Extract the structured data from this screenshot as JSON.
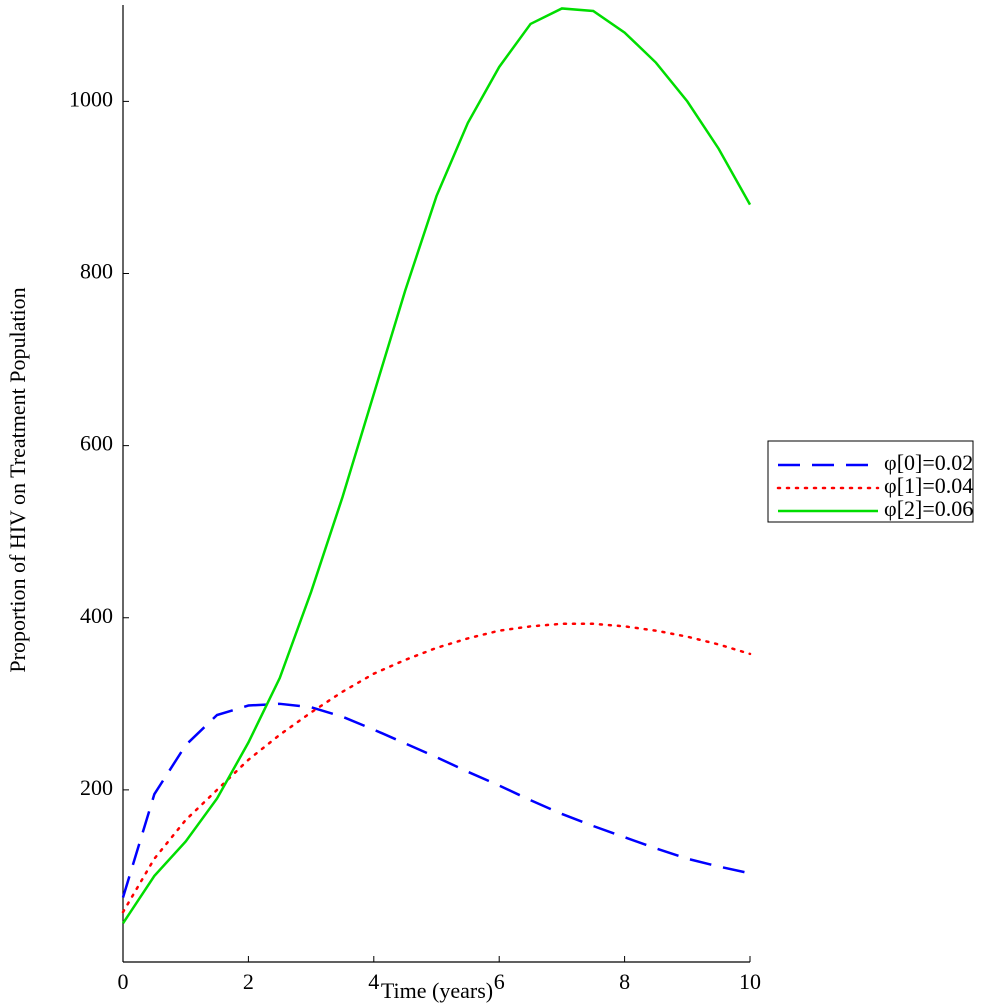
{
  "chart_data": {
    "type": "line",
    "xlabel": "Time (years)",
    "ylabel": "Proportion of HIV on Treatment Population",
    "x": [
      0,
      0.5,
      1,
      1.5,
      2,
      2.5,
      3,
      3.5,
      4,
      4.5,
      5,
      5.5,
      6,
      6.5,
      7,
      7.5,
      8,
      8.5,
      9,
      9.5,
      10
    ],
    "series": [
      {
        "name": "φ[0]=0.02",
        "color": "#0000ff",
        "dash": "long-dash",
        "values": [
          75,
          195,
          252,
          287,
          298,
          300,
          296,
          285,
          270,
          254,
          238,
          221,
          205,
          188,
          172,
          158,
          145,
          132,
          120,
          111,
          103
        ]
      },
      {
        "name": "φ[1]=0.04",
        "color": "#ff0000",
        "dash": "dot",
        "values": [
          58,
          120,
          165,
          200,
          235,
          264,
          290,
          314,
          335,
          351,
          365,
          376,
          385,
          390,
          393,
          393,
          390,
          385,
          378,
          369,
          358
        ]
      },
      {
        "name": "φ[2]=0.06",
        "color": "#00dd00",
        "dash": "solid",
        "values": [
          45,
          100,
          140,
          190,
          255,
          330,
          430,
          540,
          660,
          780,
          890,
          975,
          1040,
          1090,
          1108,
          1105,
          1080,
          1045,
          1000,
          945,
          880
        ]
      }
    ],
    "xlim": [
      0,
      10
    ],
    "xticks": [
      0,
      2,
      4,
      6,
      8,
      10
    ],
    "ylim": [
      0,
      1112
    ],
    "yticks": [
      200,
      400,
      600,
      800,
      1000
    ],
    "grid": false,
    "legend": "right"
  }
}
